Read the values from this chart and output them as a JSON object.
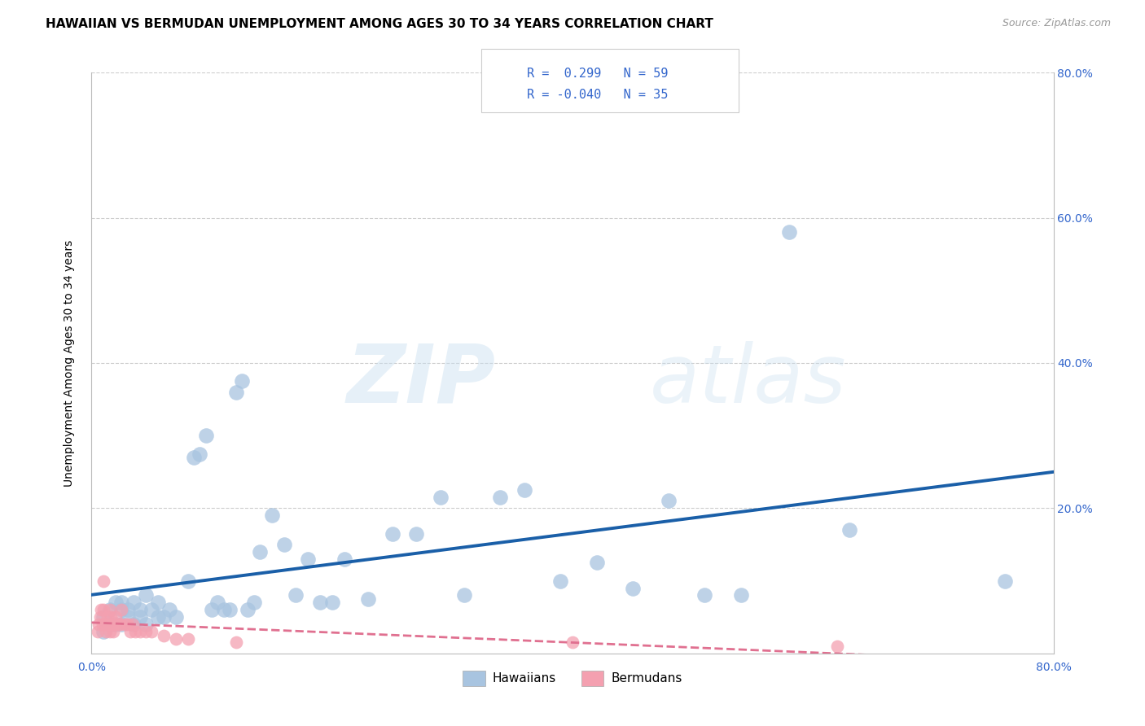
{
  "title": "HAWAIIAN VS BERMUDAN UNEMPLOYMENT AMONG AGES 30 TO 34 YEARS CORRELATION CHART",
  "source": "Source: ZipAtlas.com",
  "ylabel_label": "Unemployment Among Ages 30 to 34 years",
  "title_fontsize": 11,
  "source_fontsize": 9,
  "axis_label_fontsize": 10,
  "xlim": [
    0.0,
    0.8
  ],
  "ylim": [
    0.0,
    0.8
  ],
  "hawaiians_R": 0.299,
  "hawaiians_N": 59,
  "bermudans_R": -0.04,
  "bermudans_N": 35,
  "hawaiian_color": "#a8c4e0",
  "bermudan_color": "#f4a0b0",
  "trend_hawaii_color": "#1a5fa8",
  "trend_bermuda_color": "#e07090",
  "watermark_zip": "ZIP",
  "watermark_atlas": "atlas",
  "hawaiians_x": [
    0.01,
    0.01,
    0.015,
    0.015,
    0.02,
    0.02,
    0.025,
    0.025,
    0.025,
    0.03,
    0.03,
    0.035,
    0.035,
    0.04,
    0.04,
    0.045,
    0.045,
    0.05,
    0.055,
    0.055,
    0.06,
    0.065,
    0.07,
    0.08,
    0.085,
    0.09,
    0.095,
    0.1,
    0.105,
    0.11,
    0.115,
    0.12,
    0.125,
    0.13,
    0.135,
    0.14,
    0.15,
    0.16,
    0.17,
    0.18,
    0.19,
    0.2,
    0.21,
    0.23,
    0.25,
    0.27,
    0.29,
    0.31,
    0.34,
    0.36,
    0.39,
    0.42,
    0.45,
    0.48,
    0.51,
    0.54,
    0.58,
    0.63,
    0.76
  ],
  "hawaiians_y": [
    0.03,
    0.05,
    0.04,
    0.06,
    0.04,
    0.07,
    0.04,
    0.06,
    0.07,
    0.05,
    0.06,
    0.04,
    0.07,
    0.05,
    0.06,
    0.04,
    0.08,
    0.06,
    0.05,
    0.07,
    0.05,
    0.06,
    0.05,
    0.1,
    0.27,
    0.275,
    0.3,
    0.06,
    0.07,
    0.06,
    0.06,
    0.36,
    0.375,
    0.06,
    0.07,
    0.14,
    0.19,
    0.15,
    0.08,
    0.13,
    0.07,
    0.07,
    0.13,
    0.075,
    0.165,
    0.165,
    0.215,
    0.08,
    0.215,
    0.225,
    0.1,
    0.125,
    0.09,
    0.21,
    0.08,
    0.08,
    0.58,
    0.17,
    0.1
  ],
  "bermudans_x": [
    0.005,
    0.006,
    0.007,
    0.008,
    0.009,
    0.01,
    0.01,
    0.011,
    0.012,
    0.013,
    0.014,
    0.015,
    0.015,
    0.016,
    0.017,
    0.018,
    0.019,
    0.02,
    0.022,
    0.024,
    0.025,
    0.028,
    0.03,
    0.032,
    0.034,
    0.036,
    0.04,
    0.045,
    0.05,
    0.06,
    0.07,
    0.08,
    0.12,
    0.4,
    0.62
  ],
  "bermudans_y": [
    0.03,
    0.04,
    0.05,
    0.06,
    0.04,
    0.06,
    0.1,
    0.04,
    0.03,
    0.05,
    0.04,
    0.03,
    0.06,
    0.05,
    0.04,
    0.03,
    0.04,
    0.05,
    0.04,
    0.04,
    0.06,
    0.04,
    0.04,
    0.03,
    0.04,
    0.03,
    0.03,
    0.03,
    0.03,
    0.025,
    0.02,
    0.02,
    0.015,
    0.015,
    0.01
  ]
}
